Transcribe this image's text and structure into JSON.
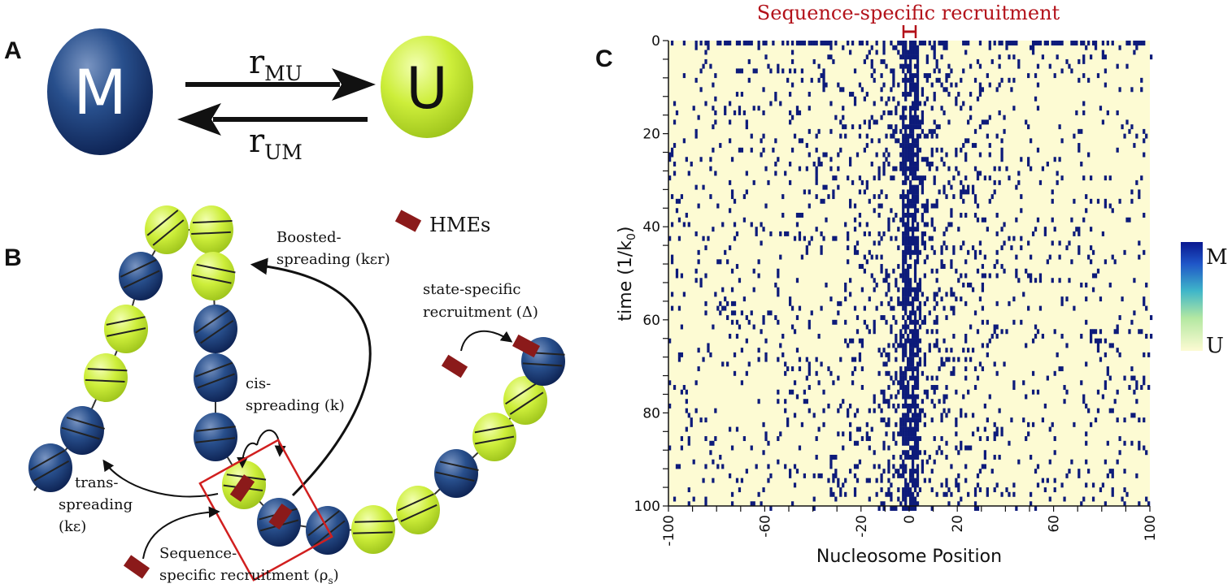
{
  "panels": {
    "a": {
      "letter": "A",
      "state_m": "M",
      "state_u": "U",
      "rate_mu_main": "r",
      "rate_mu_sub": "MU",
      "rate_um_main": "r",
      "rate_um_sub": "UM",
      "colors": {
        "m": "#15306b",
        "u": "#c8ec2a"
      }
    },
    "b": {
      "letter": "B",
      "legend_label": "HMEs",
      "boosted_line1": "Boosted-",
      "boosted_line2": "spreading (kεr)",
      "state_line1": "state-specific",
      "state_line2": "recruitment (Δ)",
      "cis_line1": "cis-",
      "cis_line2": "spreading (k)",
      "trans_line1": "trans-",
      "trans_line2": "spreading",
      "trans_line3": "(kε)",
      "seq_line1": "Sequence-",
      "seq_line2_main": "specific recruitment (ρ",
      "seq_line2_sub": "s",
      "seq_line2_end": ")",
      "colors": {
        "hme": "#8b1a1a",
        "box": "#d11f1f"
      }
    },
    "c": {
      "letter": "C",
      "top_label": "Sequence-specific recruitment",
      "xlabel": "Nucleosome Position",
      "ylabel_main": "time (1/k",
      "ylabel_sub": "0",
      "ylabel_end": ")",
      "colorbar_top": "M",
      "colorbar_bottom": "U",
      "colors": {
        "methylated": "#0d1b7a",
        "unmethylated": "#fdfbd3"
      }
    }
  },
  "chart_data": {
    "type": "heatmap",
    "xlabel": "Nucleosome Position",
    "ylabel": "time (1/k0)",
    "x_range": [
      -100,
      100
    ],
    "y_range": [
      0,
      100
    ],
    "x_ticks": [
      "-100",
      "-60",
      "-20",
      "0",
      "20",
      "60",
      "100"
    ],
    "y_ticks": [
      "0",
      "20",
      "40",
      "60",
      "80",
      "100"
    ],
    "colorbar": {
      "top": "M",
      "bottom": "U"
    },
    "description_values": {
      "recruitment_region": [
        -2,
        2
      ],
      "center_methylated_fraction": 0.75,
      "edge_methylated_fraction": 0.06,
      "initial_row_methylated_fraction": 0.5
    }
  }
}
